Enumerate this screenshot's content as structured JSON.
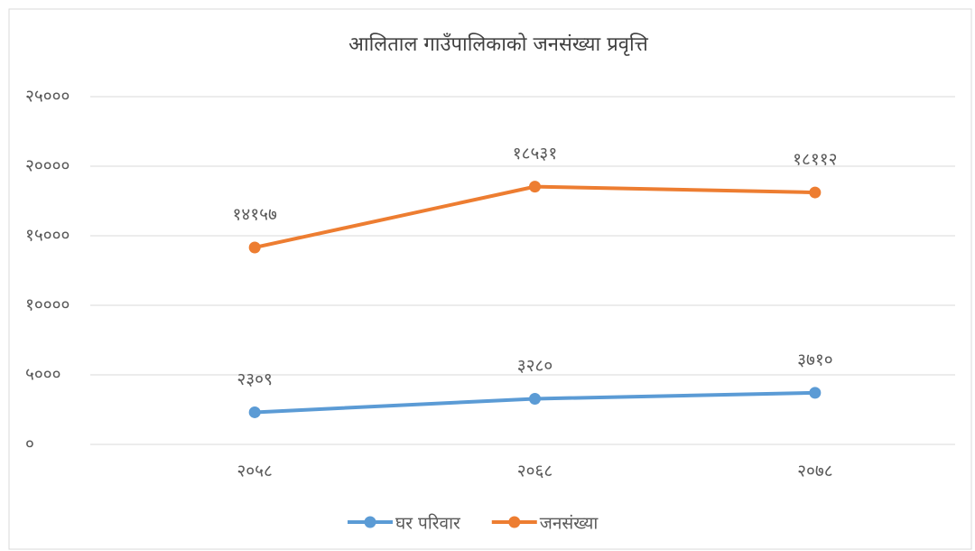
{
  "chart_data": {
    "type": "line",
    "title": "आलिताल गाउँपालिकाको जनसंख्या प्रवृत्ति",
    "categories": [
      "२०५८",
      "२०६८",
      "२०७८"
    ],
    "series": [
      {
        "name": "घर परिवार",
        "color": "#5b9bd5",
        "values": [
          2309,
          3280,
          3710
        ],
        "value_labels": [
          "२३०९",
          "३२८०",
          "३७१०"
        ]
      },
      {
        "name": "जनसंख्या",
        "color": "#ed7d31",
        "values": [
          14157,
          18531,
          18112
        ],
        "value_labels": [
          "१४१५७",
          "१८५३१",
          "१८११२"
        ]
      }
    ],
    "ylim": [
      0,
      25000
    ],
    "yticks": [
      {
        "value": 0,
        "label": "०"
      },
      {
        "value": 5000,
        "label": "५०००"
      },
      {
        "value": 10000,
        "label": "१००००"
      },
      {
        "value": 15000,
        "label": "१५०००"
      },
      {
        "value": 20000,
        "label": "२००००"
      },
      {
        "value": 25000,
        "label": "२५०००"
      }
    ],
    "grid": true,
    "legend": "bottom"
  }
}
